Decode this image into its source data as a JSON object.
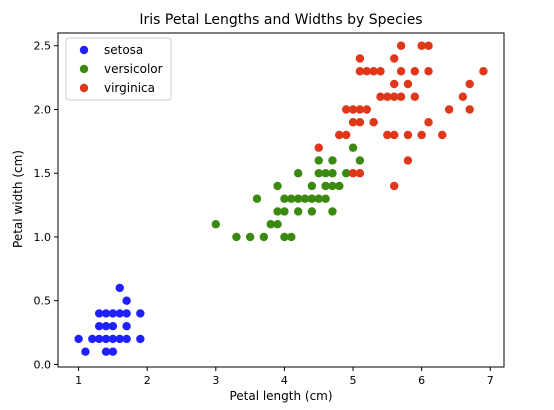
{
  "chart_data": {
    "type": "scatter",
    "title": "Iris Petal Lengths and Widths by Species",
    "xlabel": "Petal length (cm)",
    "ylabel": "Petal width (cm)",
    "xlim": [
      0.7,
      7.2
    ],
    "ylim": [
      -0.02,
      2.6
    ],
    "xticks": [
      1,
      2,
      3,
      4,
      5,
      6,
      7
    ],
    "yticks": [
      0.0,
      0.5,
      1.0,
      1.5,
      2.0,
      2.5
    ],
    "ytick_labels": [
      "0.0",
      "0.5",
      "1.0",
      "1.5",
      "2.0",
      "2.5"
    ],
    "grid": false,
    "legend_position": "top-left",
    "series": [
      {
        "name": "setosa",
        "color": "#1f1fff",
        "points": [
          [
            1.0,
            0.2
          ],
          [
            1.1,
            0.1
          ],
          [
            1.2,
            0.2
          ],
          [
            1.3,
            0.2
          ],
          [
            1.3,
            0.3
          ],
          [
            1.3,
            0.4
          ],
          [
            1.4,
            0.1
          ],
          [
            1.4,
            0.2
          ],
          [
            1.4,
            0.3
          ],
          [
            1.4,
            0.4
          ],
          [
            1.5,
            0.1
          ],
          [
            1.5,
            0.2
          ],
          [
            1.5,
            0.3
          ],
          [
            1.5,
            0.4
          ],
          [
            1.6,
            0.2
          ],
          [
            1.6,
            0.4
          ],
          [
            1.6,
            0.6
          ],
          [
            1.7,
            0.2
          ],
          [
            1.7,
            0.3
          ],
          [
            1.7,
            0.4
          ],
          [
            1.7,
            0.5
          ],
          [
            1.9,
            0.2
          ],
          [
            1.9,
            0.4
          ]
        ]
      },
      {
        "name": "versicolor",
        "color": "#3a8a10",
        "points": [
          [
            3.0,
            1.1
          ],
          [
            3.3,
            1.0
          ],
          [
            3.5,
            1.0
          ],
          [
            3.6,
            1.3
          ],
          [
            3.7,
            1.0
          ],
          [
            3.8,
            1.1
          ],
          [
            3.9,
            1.1
          ],
          [
            3.9,
            1.2
          ],
          [
            3.9,
            1.4
          ],
          [
            4.0,
            1.0
          ],
          [
            4.0,
            1.2
          ],
          [
            4.0,
            1.3
          ],
          [
            4.1,
            1.0
          ],
          [
            4.1,
            1.3
          ],
          [
            4.2,
            1.2
          ],
          [
            4.2,
            1.3
          ],
          [
            4.2,
            1.5
          ],
          [
            4.3,
            1.3
          ],
          [
            4.4,
            1.2
          ],
          [
            4.4,
            1.3
          ],
          [
            4.4,
            1.4
          ],
          [
            4.5,
            1.3
          ],
          [
            4.5,
            1.5
          ],
          [
            4.5,
            1.6
          ],
          [
            4.6,
            1.3
          ],
          [
            4.6,
            1.4
          ],
          [
            4.6,
            1.5
          ],
          [
            4.7,
            1.2
          ],
          [
            4.7,
            1.4
          ],
          [
            4.7,
            1.5
          ],
          [
            4.7,
            1.6
          ],
          [
            4.8,
            1.4
          ],
          [
            4.8,
            1.8
          ],
          [
            4.9,
            1.5
          ],
          [
            5.0,
            1.7
          ],
          [
            5.1,
            1.6
          ]
        ]
      },
      {
        "name": "virginica",
        "color": "#e0361a",
        "points": [
          [
            4.5,
            1.7
          ],
          [
            4.8,
            1.8
          ],
          [
            4.9,
            1.8
          ],
          [
            4.9,
            2.0
          ],
          [
            5.0,
            1.5
          ],
          [
            5.0,
            1.9
          ],
          [
            5.0,
            2.0
          ],
          [
            5.1,
            1.5
          ],
          [
            5.1,
            1.9
          ],
          [
            5.1,
            2.0
          ],
          [
            5.1,
            2.3
          ],
          [
            5.1,
            2.4
          ],
          [
            5.2,
            2.0
          ],
          [
            5.2,
            2.3
          ],
          [
            5.3,
            1.9
          ],
          [
            5.3,
            2.3
          ],
          [
            5.4,
            2.1
          ],
          [
            5.4,
            2.3
          ],
          [
            5.5,
            1.8
          ],
          [
            5.5,
            2.1
          ],
          [
            5.6,
            1.4
          ],
          [
            5.6,
            1.8
          ],
          [
            5.6,
            2.1
          ],
          [
            5.6,
            2.2
          ],
          [
            5.6,
            2.4
          ],
          [
            5.7,
            2.1
          ],
          [
            5.7,
            2.3
          ],
          [
            5.7,
            2.5
          ],
          [
            5.8,
            1.6
          ],
          [
            5.8,
            1.8
          ],
          [
            5.8,
            2.2
          ],
          [
            5.9,
            2.1
          ],
          [
            5.9,
            2.3
          ],
          [
            6.0,
            1.8
          ],
          [
            6.0,
            2.5
          ],
          [
            6.1,
            1.9
          ],
          [
            6.1,
            2.3
          ],
          [
            6.1,
            2.5
          ],
          [
            6.3,
            1.8
          ],
          [
            6.4,
            2.0
          ],
          [
            6.6,
            2.1
          ],
          [
            6.7,
            2.0
          ],
          [
            6.7,
            2.2
          ],
          [
            6.9,
            2.3
          ]
        ]
      }
    ]
  }
}
